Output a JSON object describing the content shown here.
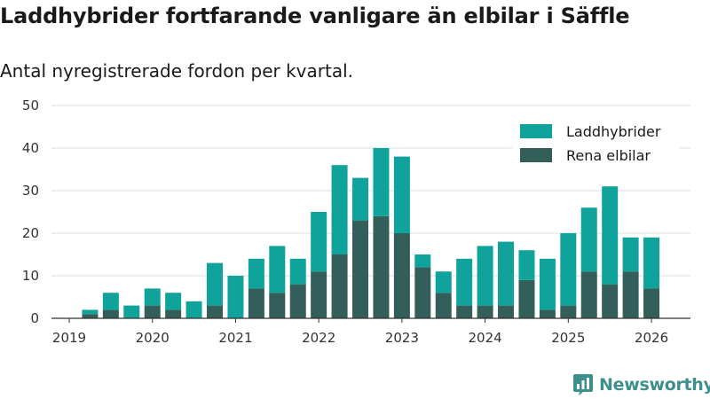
{
  "header": {
    "title": "Laddhybrider fortfarande vanligare än elbilar i Säffle",
    "subtitle": "Antal nyregistrerade fordon per kvartal."
  },
  "brand": {
    "name": "Newsworthy",
    "icon": "newsworthy-logo-icon"
  },
  "colors": {
    "hybrid": "#0fa39c",
    "electric": "#335e5a",
    "brand": "#3d8f8b",
    "grid": "#dddddd",
    "axis": "#333333"
  },
  "chart_data": {
    "type": "bar",
    "stacked": true,
    "title": "Laddhybrider fortfarande vanligare än elbilar i Säffle",
    "subtitle": "Antal nyregistrerade fordon per kvartal.",
    "xlabel": "",
    "ylabel": "",
    "ylim": [
      0,
      50
    ],
    "yticks": [
      0,
      10,
      20,
      30,
      40,
      50
    ],
    "xticks": [
      "2019",
      "2020",
      "2021",
      "2022",
      "2023",
      "2024",
      "2025",
      "2026"
    ],
    "grid": true,
    "legend_position": "top-right",
    "categories": [
      "2019 Q1",
      "2019 Q2",
      "2019 Q3",
      "2019 Q4",
      "2020 Q1",
      "2020 Q2",
      "2020 Q3",
      "2020 Q4",
      "2021 Q1",
      "2021 Q2",
      "2021 Q3",
      "2021 Q4",
      "2022 Q1",
      "2022 Q2",
      "2022 Q3",
      "2022 Q4",
      "2023 Q1",
      "2023 Q2",
      "2023 Q3",
      "2023 Q4",
      "2024 Q1",
      "2024 Q2",
      "2024 Q3",
      "2024 Q4",
      "2025 Q1",
      "2025 Q2",
      "2025 Q3",
      "2025 Q4"
    ],
    "series": [
      {
        "name": "Rena elbilar",
        "color": "#335e5a",
        "values": [
          1,
          2,
          0,
          3,
          2,
          0,
          3,
          0,
          7,
          6,
          8,
          11,
          15,
          23,
          24,
          20,
          12,
          6,
          3,
          3,
          3,
          9,
          2,
          3,
          11,
          8,
          11,
          7
        ]
      },
      {
        "name": "Laddhybrider",
        "color": "#0fa39c",
        "values": [
          1,
          4,
          3,
          4,
          4,
          4,
          10,
          10,
          7,
          11,
          6,
          14,
          21,
          10,
          16,
          18,
          3,
          5,
          11,
          14,
          15,
          7,
          12,
          17,
          15,
          23,
          8,
          12
        ]
      }
    ]
  }
}
